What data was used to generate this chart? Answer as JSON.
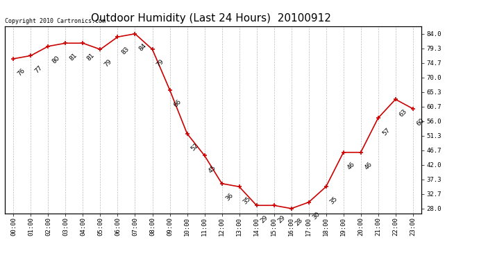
{
  "title": "Outdoor Humidity (Last 24 Hours)  20100912",
  "copyright": "Copyright 2010 Cartronics.com",
  "x_labels": [
    "00:00",
    "01:00",
    "02:00",
    "03:00",
    "04:00",
    "05:00",
    "06:00",
    "07:00",
    "08:00",
    "09:00",
    "10:00",
    "11:00",
    "12:00",
    "13:00",
    "14:00",
    "15:00",
    "16:00",
    "17:00",
    "18:00",
    "19:00",
    "20:00",
    "21:00",
    "22:00",
    "23:00"
  ],
  "y_values": [
    76,
    77,
    80,
    81,
    81,
    79,
    83,
    84,
    79,
    66,
    52,
    45,
    36,
    35,
    29,
    29,
    28,
    30,
    35,
    46,
    46,
    57,
    63,
    60
  ],
  "y_labels_right": [
    "84.0",
    "79.3",
    "74.7",
    "70.0",
    "65.3",
    "60.7",
    "56.0",
    "51.3",
    "46.7",
    "42.0",
    "37.3",
    "32.7",
    "28.0"
  ],
  "y_ticks_right": [
    84.0,
    79.3,
    74.7,
    70.0,
    65.3,
    60.7,
    56.0,
    51.3,
    46.7,
    42.0,
    37.3,
    32.7,
    28.0
  ],
  "ylim": [
    26.5,
    86.5
  ],
  "line_color": "#cc0000",
  "marker_color": "#cc0000",
  "background_color": "#ffffff",
  "grid_color": "#bbbbbb",
  "title_fontsize": 11,
  "label_fontsize": 6.5,
  "annotation_fontsize": 6.5,
  "copyright_fontsize": 6
}
